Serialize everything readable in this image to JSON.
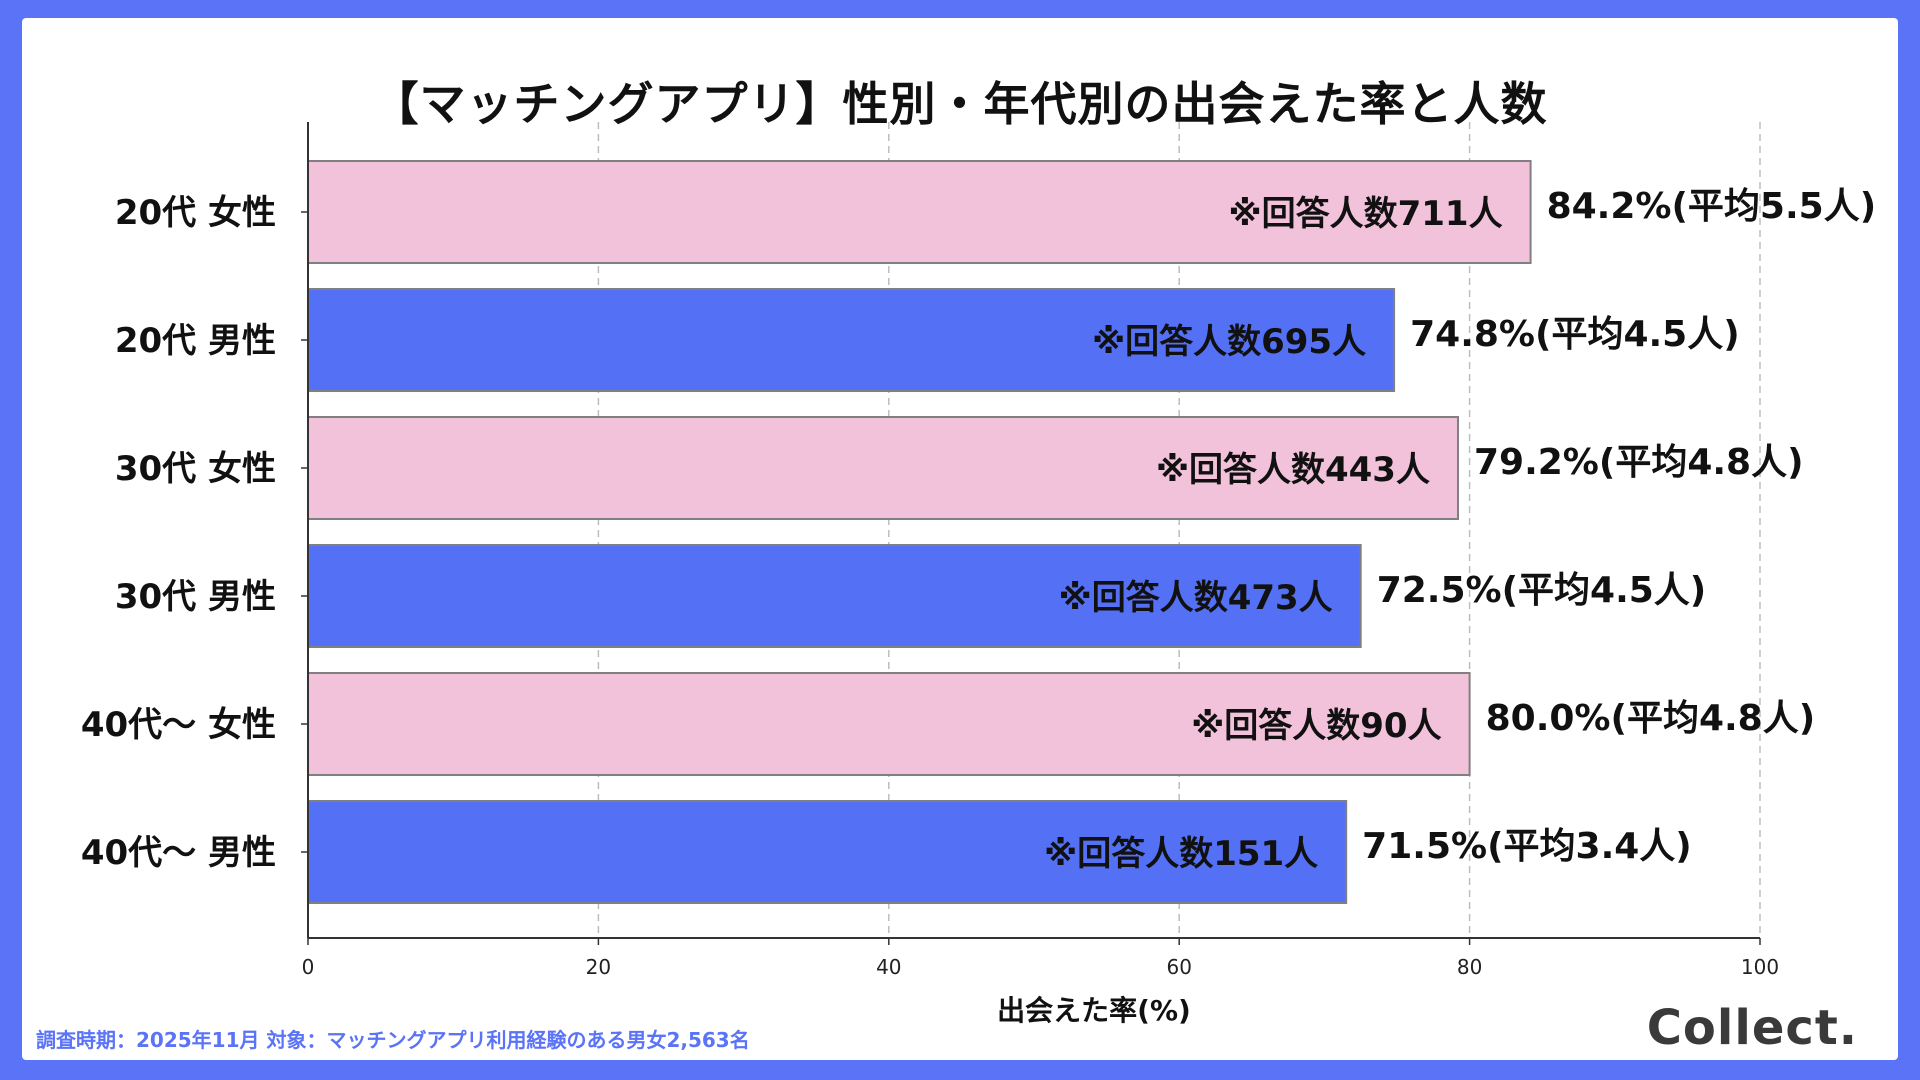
{
  "chart_data": {
    "type": "bar",
    "orientation": "horizontal",
    "title": "【マッチングアプリ】性別・年代別の出会えた率と人数",
    "xlabel": "出会えた率(%)",
    "ylabel": "",
    "xlim": [
      0,
      100
    ],
    "xticks": [
      "0",
      "20",
      "40",
      "60",
      "80",
      "100"
    ],
    "xtick_values": [
      0,
      20,
      40,
      60,
      80,
      100
    ],
    "grid": "vertical dashed",
    "categories": [
      "20代 女性",
      "20代 男性",
      "30代 女性",
      "30代 男性",
      "40代〜 女性",
      "40代〜 男性"
    ],
    "values": [
      84.2,
      74.8,
      79.2,
      72.5,
      80.0,
      71.5
    ],
    "inner_labels": [
      "※回答人数711人",
      "※回答人数695人",
      "※回答人数443人",
      "※回答人数473人",
      "※回答人数90人",
      "※回答人数151人"
    ],
    "value_labels": [
      "84.2%(平均5.5人)",
      "74.8%(平均4.5人)",
      "79.2%(平均4.8人)",
      "72.5%(平均4.5人)",
      "80.0%(平均4.8人)",
      "71.5%(平均3.4人)"
    ],
    "colors": {
      "female": "#f2c1da",
      "male": "#5470f5",
      "bar_stroke": "#808080",
      "grid": "#bdbdbd"
    },
    "bar_groups": [
      "female",
      "male",
      "female",
      "male",
      "female",
      "male"
    ]
  },
  "footer": {
    "note": "調査時期：2025年11月 対象：マッチングアプリ利用経験のある男女2,563名",
    "brand": "Collect."
  },
  "frame_color": "#5a73f7"
}
